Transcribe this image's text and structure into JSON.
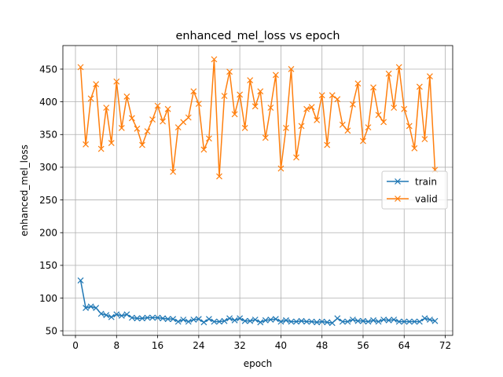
{
  "chart_data": {
    "type": "line",
    "title": "enhanced_mel_loss vs epoch",
    "xlabel": "epoch",
    "ylabel": "enhanced_mel_loss",
    "xlim": [
      -2.45,
      73.45
    ],
    "ylim": [
      43,
      486
    ],
    "xticks": [
      0,
      8,
      16,
      24,
      32,
      40,
      48,
      56,
      64,
      72
    ],
    "yticks": [
      50,
      100,
      150,
      200,
      250,
      300,
      350,
      400,
      450
    ],
    "grid": true,
    "legend_position": "center right",
    "marker": "x",
    "x": [
      1,
      2,
      3,
      4,
      5,
      6,
      7,
      8,
      9,
      10,
      11,
      12,
      13,
      14,
      15,
      16,
      17,
      18,
      19,
      20,
      21,
      22,
      23,
      24,
      25,
      26,
      27,
      28,
      29,
      30,
      31,
      32,
      33,
      34,
      35,
      36,
      37,
      38,
      39,
      40,
      41,
      42,
      43,
      44,
      45,
      46,
      47,
      48,
      49,
      50,
      51,
      52,
      53,
      54,
      55,
      56,
      57,
      58,
      59,
      60,
      61,
      62,
      63,
      64,
      65,
      66,
      67,
      68,
      69,
      70
    ],
    "series": [
      {
        "name": "train",
        "color": "#1f77b4",
        "values": [
          127,
          85,
          87,
          85,
          76,
          74,
          71,
          75,
          73,
          75,
          70,
          69,
          69,
          70,
          70,
          70,
          69,
          68,
          68,
          64,
          67,
          64,
          67,
          68,
          63,
          68,
          64,
          64,
          65,
          69,
          66,
          69,
          65,
          65,
          67,
          63,
          66,
          67,
          68,
          64,
          66,
          64,
          64,
          65,
          64,
          64,
          63,
          64,
          63,
          62,
          69,
          64,
          64,
          67,
          65,
          65,
          64,
          66,
          64,
          67,
          66,
          67,
          64,
          64,
          64,
          64,
          64,
          69,
          67,
          65
        ]
      },
      {
        "name": "valid",
        "color": "#ff7f0e",
        "values": [
          453,
          335,
          405,
          427,
          328,
          391,
          337,
          431,
          360,
          408,
          375,
          359,
          334,
          355,
          373,
          394,
          370,
          389,
          293,
          361,
          369,
          376,
          416,
          397,
          327,
          344,
          465,
          286,
          409,
          446,
          381,
          411,
          360,
          433,
          393,
          416,
          345,
          391,
          441,
          298,
          360,
          450,
          315,
          363,
          389,
          392,
          372,
          410,
          334,
          410,
          404,
          365,
          356,
          396,
          428,
          340,
          361,
          422,
          380,
          369,
          443,
          391,
          453,
          389,
          363,
          329,
          423,
          343,
          439,
          296
        ]
      }
    ]
  }
}
